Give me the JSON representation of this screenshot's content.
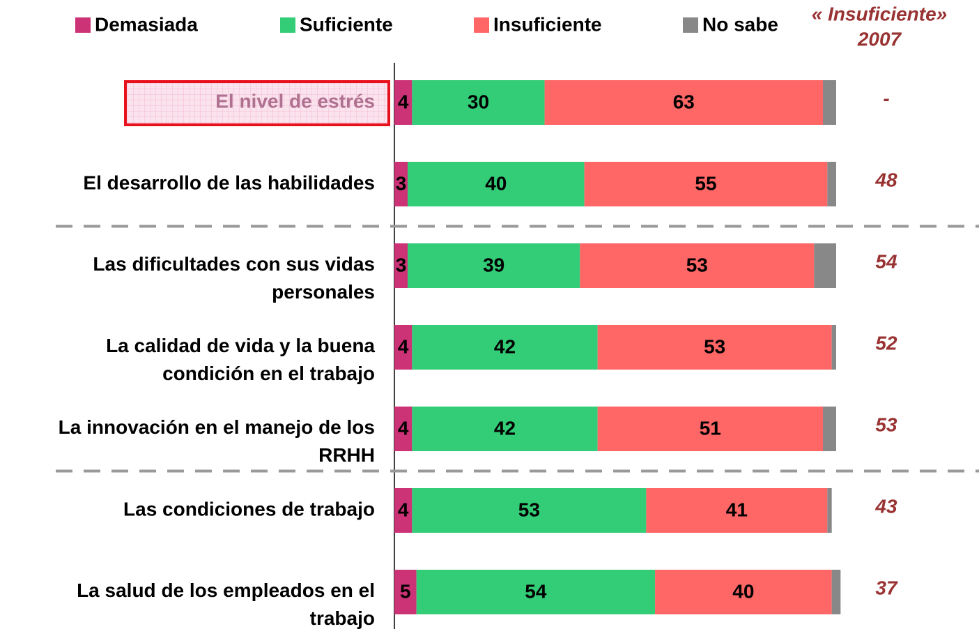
{
  "chart_data": {
    "type": "bar",
    "orientation": "horizontal",
    "stacked": true,
    "categories": [
      "El nivel de estrés",
      "El desarrollo de las habilidades",
      "Las dificultades con sus vidas personales",
      "La calidad de vida y la buena condición en el trabajo",
      "La innovación en el manejo de los RRHH",
      "Las condiciones de trabajo",
      "La salud de los empleados en el trabajo"
    ],
    "series": [
      {
        "name": "Demasiada",
        "color": "#cc3377",
        "values": [
          4,
          3,
          3,
          4,
          4,
          4,
          5
        ]
      },
      {
        "name": "Suficiente",
        "color": "#33cc77",
        "values": [
          30,
          40,
          39,
          42,
          42,
          53,
          54
        ]
      },
      {
        "name": "Insuficiente",
        "color": "#ff6666",
        "values": [
          63,
          55,
          53,
          53,
          51,
          41,
          40
        ]
      },
      {
        "name": "No sabe",
        "color": "#888888",
        "values": [
          3,
          2,
          5,
          1,
          3,
          1,
          2
        ],
        "labels": false
      }
    ],
    "xlim": [
      0,
      100
    ],
    "column_title": [
      "« Insuficiente»",
      "2007"
    ],
    "column_values": [
      "-",
      48,
      54,
      52,
      53,
      43,
      37
    ],
    "column_color": "#993333",
    "highlight": 0,
    "separators_after": [
      1,
      4
    ],
    "legend": "top"
  }
}
